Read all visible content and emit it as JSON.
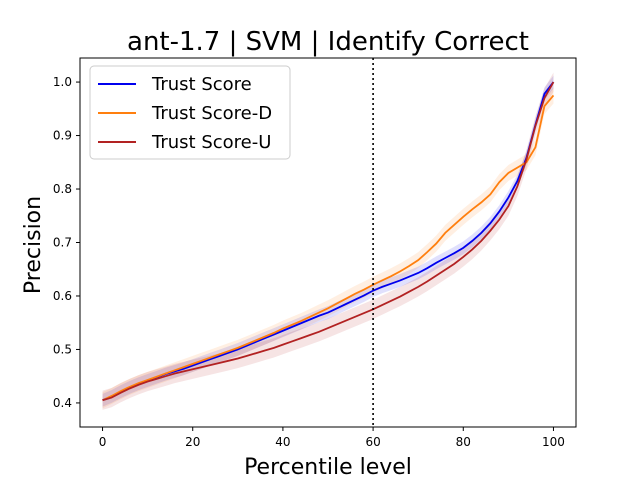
{
  "chart_data": {
    "type": "line",
    "title": "ant-1.7 | SVM | Identify Correct",
    "xlabel": "Percentile level",
    "ylabel": "Precision",
    "xlim": [
      -5,
      105
    ],
    "ylim": [
      0.355,
      1.045
    ],
    "xticks": [
      0,
      20,
      40,
      60,
      80,
      100
    ],
    "yticks": [
      0.4,
      0.5,
      0.6,
      0.7,
      0.8,
      0.9,
      1.0
    ],
    "xtick_labels": [
      "0",
      "20",
      "40",
      "60",
      "80",
      "100"
    ],
    "ytick_labels": [
      "0.4",
      "0.5",
      "0.6",
      "0.7",
      "0.8",
      "0.9",
      "1.0"
    ],
    "grid": false,
    "legend_position": "top-left",
    "vline": {
      "x": 60,
      "style": "dotted",
      "color": "#000000"
    },
    "x": [
      0,
      2,
      4,
      6,
      8,
      10,
      12,
      14,
      16,
      18,
      20,
      22,
      24,
      26,
      28,
      30,
      32,
      34,
      36,
      38,
      40,
      42,
      44,
      46,
      48,
      50,
      52,
      54,
      56,
      58,
      60,
      62,
      64,
      66,
      68,
      70,
      72,
      74,
      76,
      78,
      80,
      82,
      84,
      86,
      88,
      90,
      92,
      94,
      96,
      98,
      100
    ],
    "series": [
      {
        "name": "Trust Score",
        "color": "#0000ee",
        "band_color": "#0000ee",
        "values": [
          0.405,
          0.412,
          0.421,
          0.429,
          0.436,
          0.442,
          0.448,
          0.454,
          0.459,
          0.464,
          0.47,
          0.476,
          0.482,
          0.488,
          0.494,
          0.5,
          0.507,
          0.514,
          0.521,
          0.528,
          0.535,
          0.542,
          0.549,
          0.556,
          0.563,
          0.569,
          0.577,
          0.585,
          0.593,
          0.601,
          0.61,
          0.617,
          0.623,
          0.629,
          0.636,
          0.643,
          0.652,
          0.662,
          0.671,
          0.68,
          0.69,
          0.703,
          0.718,
          0.736,
          0.758,
          0.784,
          0.815,
          0.858,
          0.92,
          0.978,
          1.0
        ],
        "band": 0.012
      },
      {
        "name": "Trust Score-D",
        "color": "#ff7f0e",
        "band_color": "#ff7f0e",
        "values": [
          0.405,
          0.413,
          0.422,
          0.43,
          0.437,
          0.443,
          0.449,
          0.455,
          0.461,
          0.467,
          0.473,
          0.479,
          0.485,
          0.491,
          0.497,
          0.503,
          0.51,
          0.517,
          0.524,
          0.531,
          0.539,
          0.546,
          0.553,
          0.561,
          0.569,
          0.577,
          0.586,
          0.595,
          0.604,
          0.612,
          0.621,
          0.629,
          0.637,
          0.646,
          0.656,
          0.667,
          0.682,
          0.698,
          0.718,
          0.733,
          0.748,
          0.762,
          0.775,
          0.79,
          0.813,
          0.83,
          0.84,
          0.85,
          0.878,
          0.955,
          0.975
        ],
        "band": 0.015
      },
      {
        "name": "Trust Score-U",
        "color": "#b22222",
        "band_color": "#b22222",
        "values": [
          0.405,
          0.41,
          0.419,
          0.427,
          0.434,
          0.44,
          0.445,
          0.45,
          0.455,
          0.459,
          0.463,
          0.467,
          0.471,
          0.475,
          0.479,
          0.483,
          0.488,
          0.493,
          0.498,
          0.503,
          0.509,
          0.515,
          0.521,
          0.527,
          0.533,
          0.54,
          0.547,
          0.554,
          0.561,
          0.568,
          0.575,
          0.583,
          0.591,
          0.599,
          0.608,
          0.617,
          0.627,
          0.638,
          0.649,
          0.66,
          0.673,
          0.687,
          0.703,
          0.722,
          0.743,
          0.768,
          0.805,
          0.855,
          0.918,
          0.97,
          1.0
        ],
        "band": 0.018
      }
    ]
  }
}
